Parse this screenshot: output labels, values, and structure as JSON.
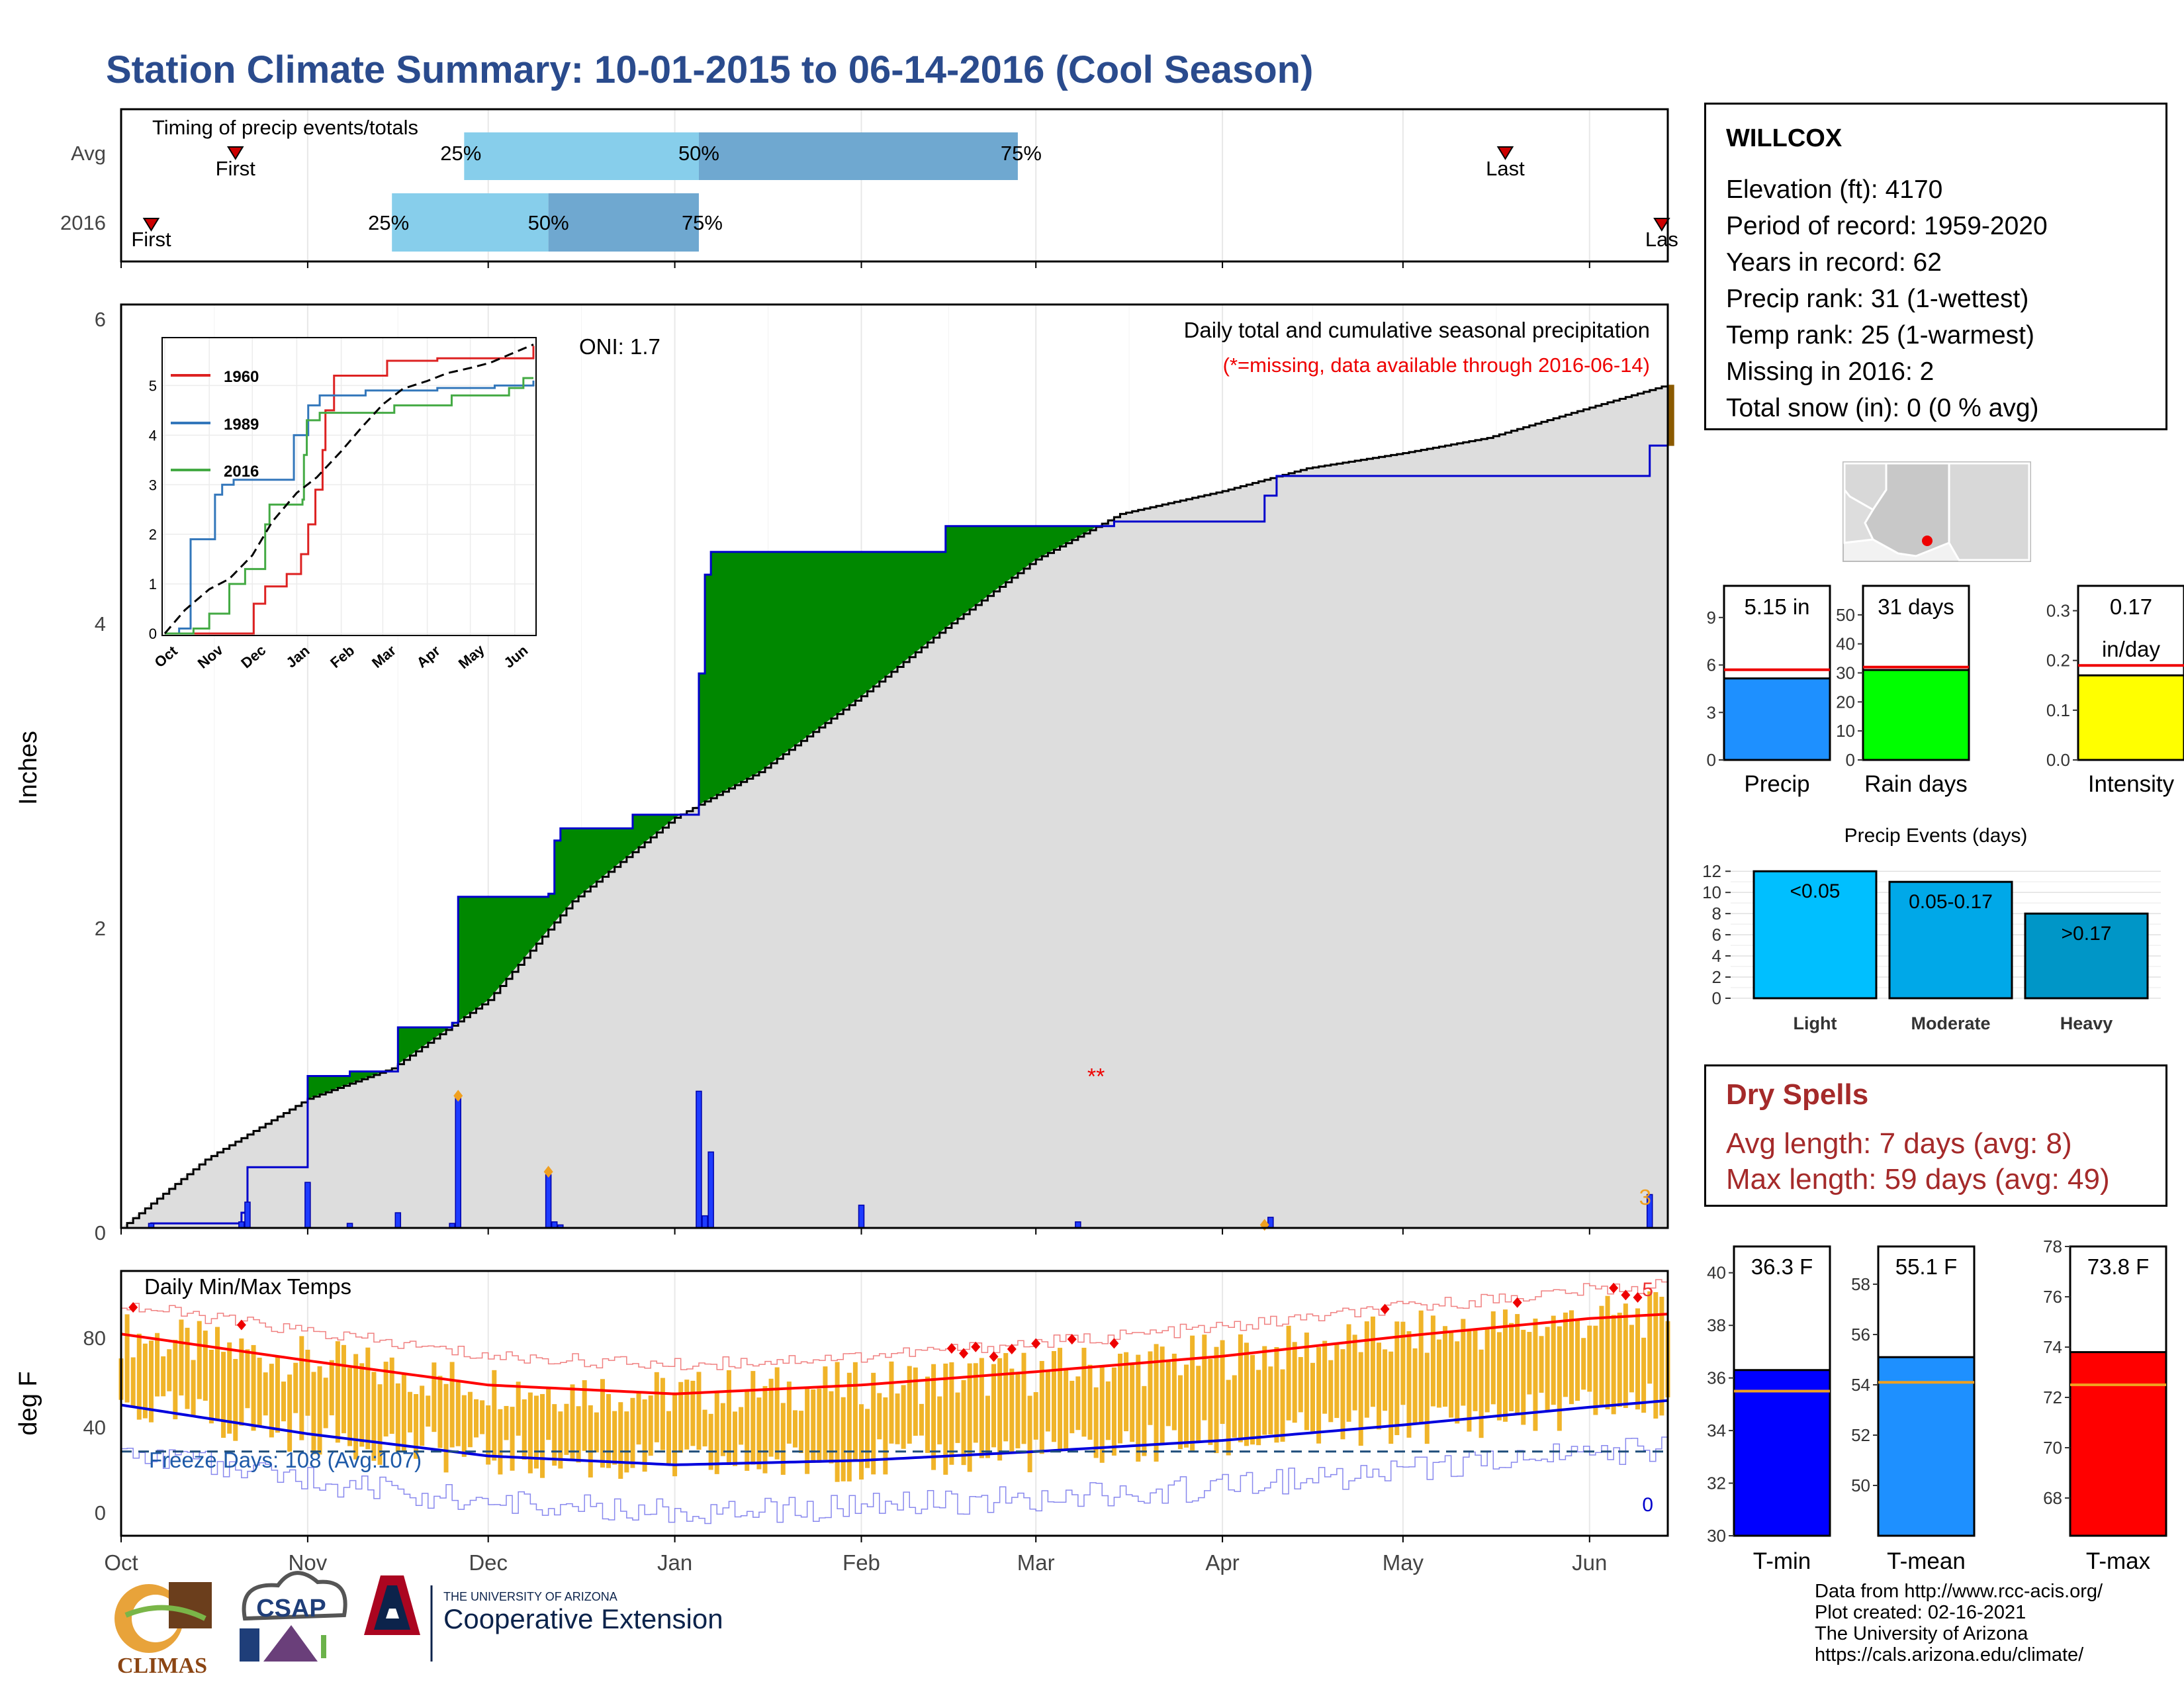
{
  "page": {
    "title": "Station Climate Summary: 10-01-2015 to 06-14-2016 (Cool Season)"
  },
  "timing": {
    "label": "Timing of precip events/totals",
    "rows": [
      {
        "label": "Avg",
        "first_date": "2015-10-20",
        "last_date": "2016-05-18",
        "p25_date": "2015-11-27",
        "p50_date": "2016-01-05",
        "p75_date": "2016-02-27"
      },
      {
        "label": "2016",
        "first_date": "2015-10-06",
        "last_date": "2016-06-13",
        "p25_date": "2015-11-15",
        "p50_date": "2015-12-11",
        "p75_date": "2016-01-05"
      }
    ],
    "first_label": "First",
    "first_label_2016": "First",
    "last_label": "Last",
    "last_label_2016": "Las",
    "p25_label": "25%",
    "p50_label": "50%",
    "p75_label": "75%",
    "colors": {
      "light": "#87ceeb",
      "dark": "#6fa8d0",
      "marker": "#cc0000"
    }
  },
  "precip_panel": {
    "ylabel": "Inches",
    "yticks": [
      "0",
      "2",
      "4",
      "6"
    ],
    "oni": "ONI: 1.7",
    "caption": "Daily total and cumulative seasonal precipitation",
    "missing_note": "(*=missing, data available through 2016-06-14)",
    "corner_label": "3",
    "colors": {
      "avg_fill": "#dddddd",
      "above": "#008800",
      "below": "#8b5a00",
      "obs": "#0000cc"
    }
  },
  "temp_panel": {
    "ylabel": "deg F",
    "yticks": [
      "0",
      "40",
      "80"
    ],
    "title": "Daily Min/Max Temps",
    "freeze_label": "Freeze Days: 108 (Avg:107)",
    "corner_label_top": "5",
    "corner_label_bottom": "0",
    "colors": {
      "bars": "#f0b429",
      "max_line": "#ff0000",
      "min_line": "#0000dd"
    }
  },
  "x_months": [
    "Oct",
    "Nov",
    "Dec",
    "Jan",
    "Feb",
    "Mar",
    "Apr",
    "May",
    "Jun"
  ],
  "inset": {
    "months": [
      "Oct",
      "Nov",
      "Dec",
      "Jan",
      "Feb",
      "Mar",
      "Apr",
      "May",
      "Jun"
    ],
    "yticks": [
      "0",
      "1",
      "2",
      "3",
      "4",
      "5"
    ],
    "legend": [
      {
        "label": "1960",
        "color": "#dd2222"
      },
      {
        "label": "1989",
        "color": "#3377bb"
      },
      {
        "label": "2016",
        "color": "#44aa44"
      }
    ]
  },
  "station": {
    "name": "WILLCOX",
    "lines": [
      "Elevation (ft): 4170",
      "Period of record: 1959-2020",
      "Years in record: 62",
      "Precip rank: 31 (1-wettest)",
      "Temp rank: 25 (1-warmest)",
      "Missing in 2016: 2",
      "Total snow (in): 0 (0 % avg)"
    ]
  },
  "mini_bars": [
    {
      "label": "Precip",
      "value_label": "5.15 in",
      "value": 5.15,
      "avg": 5.7,
      "ymax": 11,
      "ticks": [
        "0",
        "3",
        "6",
        "9"
      ],
      "color": "#1e90ff"
    },
    {
      "label": "Rain days",
      "value_label": "31 days",
      "value": 31,
      "avg": 32,
      "ymax": 60,
      "ticks": [
        "0",
        "10",
        "20",
        "30",
        "40",
        "50"
      ],
      "color": "#00ff00"
    },
    {
      "label": "Intensity",
      "value_label": "0.17",
      "value_label2": "in/day",
      "value": 0.17,
      "avg": 0.19,
      "ymax": 0.35,
      "ticks": [
        "0.0",
        "0.1",
        "0.2",
        "0.3"
      ],
      "color": "#ffff00"
    }
  ],
  "events": {
    "title": "Precip Events (days)",
    "yticks": [
      "0",
      "2",
      "4",
      "6",
      "8",
      "10",
      "12"
    ],
    "bars": [
      {
        "category": "Light",
        "label": "<0.05",
        "value": 12,
        "color": "#00bfff"
      },
      {
        "category": "Moderate",
        "label": "0.05-0.17",
        "value": 11,
        "color": "#00a8e8"
      },
      {
        "category": "Heavy",
        "label": ">0.17",
        "value": 8,
        "color": "#0096c7"
      }
    ]
  },
  "dry_spells": {
    "title": "Dry Spells",
    "avg_line": "Avg length: 7 days (avg: 8)",
    "max_line": "Max length: 59 days (avg: 49)"
  },
  "temp_bars": [
    {
      "label": "T-min",
      "value_label": "36.3 F",
      "value": 36.3,
      "avg": 35.5,
      "ymin": 30,
      "ymax": 41,
      "ticks": [
        "30",
        "32",
        "34",
        "36",
        "38",
        "40"
      ],
      "color": "#0000ff"
    },
    {
      "label": "T-mean",
      "value_label": "55.1 F",
      "value": 55.1,
      "avg": 54.1,
      "ymin": 48,
      "ymax": 59.5,
      "ticks": [
        "50",
        "52",
        "54",
        "56",
        "58"
      ],
      "color": "#1e90ff"
    },
    {
      "label": "T-max",
      "value_label": "73.8 F",
      "value": 73.8,
      "avg": 72.5,
      "ymin": 66.5,
      "ymax": 78,
      "ticks": [
        "68",
        "70",
        "72",
        "74",
        "76",
        "78"
      ],
      "color": "#ff0000"
    }
  ],
  "logos": {
    "climas": "CLIMAS",
    "csap": "CSAP",
    "ua_small": "THE UNIVERSITY OF ARIZONA",
    "ua_big": "Cooperative Extension"
  },
  "footer": {
    "lines": [
      "Data from http://www.rcc-acis.org/",
      "Plot created: 02-16-2021",
      "The University of Arizona",
      "https://cals.arizona.edu/climate/"
    ]
  },
  "chart_data": [
    {
      "type": "area",
      "title": "Daily total and cumulative seasonal precipitation",
      "ylabel": "Inches",
      "ylim": [
        0,
        6
      ],
      "x_range": [
        "2015-10-01",
        "2016-06-14"
      ],
      "series": [
        {
          "name": "cumulative 2016",
          "x": [
            "2015-10-01",
            "2015-10-06",
            "2015-10-21",
            "2015-10-22",
            "2015-11-01",
            "2015-11-08",
            "2015-11-16",
            "2015-11-25",
            "2015-11-26",
            "2015-12-11",
            "2015-12-12",
            "2015-12-13",
            "2015-12-25",
            "2016-01-04",
            "2016-01-05",
            "2016-01-06",
            "2016-01-07",
            "2016-01-15",
            "2016-02-15",
            "2016-03-14",
            "2016-04-08",
            "2016-04-10",
            "2016-06-10",
            "2016-06-11",
            "2016-06-14"
          ],
          "y": [
            0,
            0.03,
            0.1,
            0.4,
            1.0,
            1.03,
            1.32,
            1.35,
            2.18,
            2.2,
            2.55,
            2.63,
            2.72,
            2.72,
            3.65,
            4.3,
            4.45,
            4.45,
            4.62,
            4.65,
            4.82,
            4.95,
            4.95,
            5.15,
            5.15
          ]
        },
        {
          "name": "average cumulative",
          "x": [
            "2015-10-01",
            "2015-10-15",
            "2015-11-01",
            "2015-11-15",
            "2015-12-01",
            "2015-12-15",
            "2016-01-01",
            "2016-01-15",
            "2016-02-01",
            "2016-02-15",
            "2016-03-01",
            "2016-03-15",
            "2016-04-01",
            "2016-04-15",
            "2016-05-01",
            "2016-05-15",
            "2016-06-01",
            "2016-06-14"
          ],
          "y": [
            0,
            0.45,
            0.85,
            1.05,
            1.5,
            2.15,
            2.7,
            3.0,
            3.5,
            3.95,
            4.4,
            4.7,
            4.85,
            5.0,
            5.1,
            5.2,
            5.4,
            5.55
          ]
        }
      ],
      "daily_precip": {
        "x": [
          "2015-10-06",
          "2015-10-21",
          "2015-10-22",
          "2015-11-01",
          "2015-11-08",
          "2015-11-16",
          "2015-11-25",
          "2015-11-26",
          "2015-12-11",
          "2015-12-12",
          "2015-12-13",
          "2016-01-05",
          "2016-01-06",
          "2016-01-07",
          "2016-02-01",
          "2016-03-08",
          "2016-04-09",
          "2016-06-11"
        ],
        "y": [
          0.03,
          0.04,
          0.17,
          0.3,
          0.03,
          0.1,
          0.03,
          0.87,
          0.35,
          0.04,
          0.02,
          0.9,
          0.08,
          0.5,
          0.15,
          0.04,
          0.07,
          0.22
        ]
      }
    },
    {
      "type": "bar",
      "title": "Daily Min/Max Temps",
      "ylabel": "deg F",
      "ylim": [
        -10,
        105
      ],
      "x_range": [
        "2015-10-01",
        "2016-06-14"
      ],
      "series": [
        {
          "name": "avg max",
          "x": [
            "2015-10-01",
            "2015-11-01",
            "2015-12-01",
            "2016-01-01",
            "2016-02-01",
            "2016-03-01",
            "2016-04-01",
            "2016-05-01",
            "2016-06-01",
            "2016-06-14"
          ],
          "y": [
            85,
            73,
            62,
            58,
            62,
            68,
            75,
            84,
            92,
            94
          ]
        },
        {
          "name": "avg min",
          "x": [
            "2015-10-01",
            "2015-11-01",
            "2015-12-01",
            "2016-01-01",
            "2016-02-01",
            "2016-03-01",
            "2016-04-01",
            "2016-05-01",
            "2016-06-01",
            "2016-06-14"
          ],
          "y": [
            53,
            40,
            30,
            26,
            28,
            32,
            37,
            44,
            52,
            55
          ]
        }
      ],
      "freeze_threshold": 32
    }
  ]
}
